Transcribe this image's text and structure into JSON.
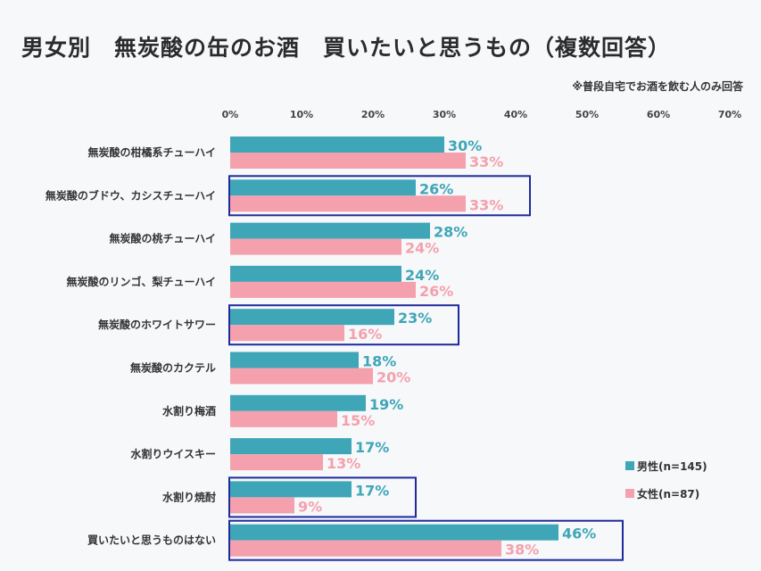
{
  "chart_data": {
    "type": "bar",
    "orientation": "horizontal",
    "title": "男女別　無炭酸の缶のお酒　買いたいと思うもの（複数回答）",
    "note": "※普段自宅でお酒を飲む人のみ回答",
    "xlim": [
      0,
      70
    ],
    "xticks": [
      "0%",
      "10%",
      "20%",
      "30%",
      "40%",
      "50%",
      "60%",
      "70%"
    ],
    "categories": [
      "無炭酸の柑橘系チューハイ",
      "無炭酸のブドウ、カシスチューハイ",
      "無炭酸の桃チューハイ",
      "無炭酸のリンゴ、梨チューハイ",
      "無炭酸のホワイトサワー",
      "無炭酸のカクテル",
      "水割り梅酒",
      "水割りウイスキー",
      "水割り焼酎",
      "買いたいと思うものはない"
    ],
    "series": [
      {
        "name": "男性(n=145)",
        "color": "#3fa6b8",
        "values": [
          30,
          26,
          28,
          24,
          23,
          18,
          19,
          17,
          17,
          46
        ],
        "labels": [
          "30%",
          "26%",
          "28%",
          "24%",
          "23%",
          "18%",
          "19%",
          "17%",
          "17%",
          "46%"
        ]
      },
      {
        "name": "女性(n=87)",
        "color": "#f5a0ad",
        "values": [
          33,
          33,
          24,
          26,
          16,
          20,
          15,
          13,
          9,
          38
        ],
        "labels": [
          "33%",
          "33%",
          "24%",
          "26%",
          "16%",
          "20%",
          "15%",
          "13%",
          "9%",
          "38%"
        ]
      }
    ],
    "highlighted_categories": [
      1,
      4,
      8,
      9
    ],
    "highlight_color": "#1f2a9b",
    "legend_position": "right",
    "grid": false
  }
}
